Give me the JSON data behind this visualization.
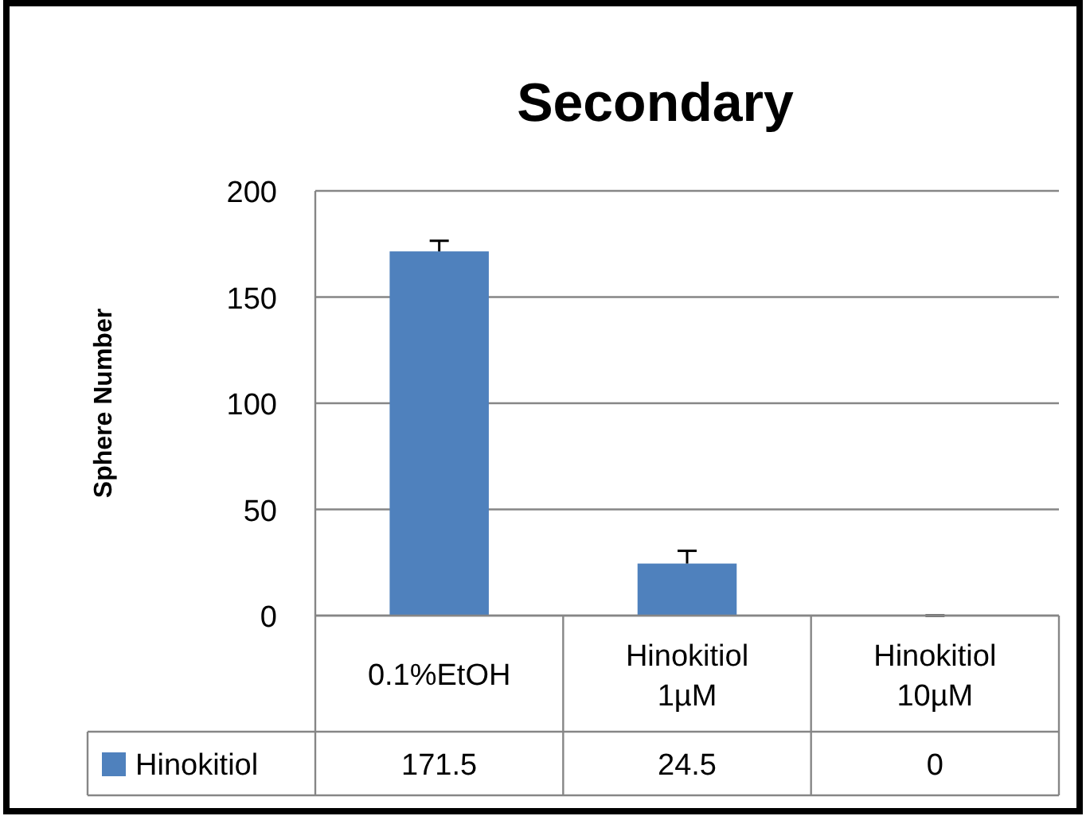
{
  "chart_data": {
    "type": "bar",
    "title": "Secondary",
    "ylabel": "Sphere Number",
    "categories": [
      "0.1%EtOH",
      "Hinokitiol\n1µM",
      "Hinokitiol\n10µM"
    ],
    "series": [
      {
        "name": "Hinokitiol",
        "color": "#4f81bd",
        "values": [
          171.5,
          24.5,
          0
        ],
        "errors": [
          5,
          6,
          0
        ]
      }
    ],
    "ylim": [
      0,
      200
    ],
    "yticks": [
      0,
      50,
      100,
      150,
      200
    ],
    "grid": "y",
    "legend": "bottom",
    "data_labels": true
  }
}
